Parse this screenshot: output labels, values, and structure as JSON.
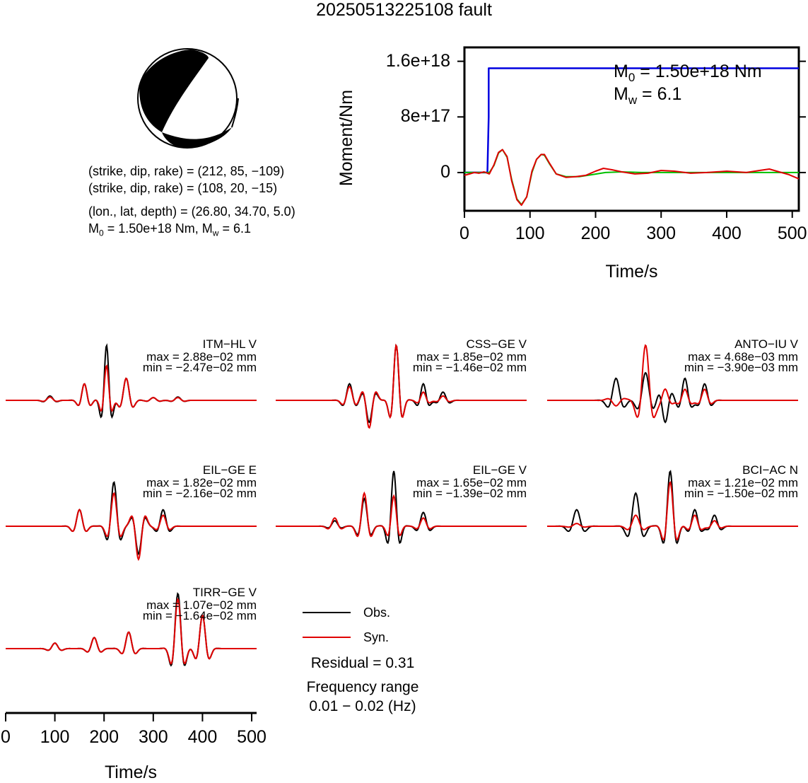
{
  "title": "20250513225108 fault",
  "beachball": {
    "line1": "(strike, dip, rake) = (212, 85, −109)",
    "line2": "(strike, dip, rake) = (108, 20, −15)",
    "line3": "(lon., lat, depth) = (26.80, 34.70, 5.0)",
    "m0_label": "M",
    "m0_sub": "0",
    "m0_rest": " = 1.50e+18 Nm, M",
    "mw_sub": "w",
    "mw_rest": " = 6.1"
  },
  "stf_annotation": {
    "m0_prefix": "M",
    "m0_sub": "0",
    "m0_value": " = 1.50e+18 Nm",
    "mw_prefix": "M",
    "mw_sub": "w",
    "mw_value": " = 6.1"
  },
  "legend": {
    "obs": "Obs.",
    "syn": "Syn.",
    "residual": "Residual = 0.31",
    "freq_label": "Frequency range",
    "freq_value": "0.01 − 0.02 (Hz)"
  },
  "colors": {
    "observed": "#000000",
    "synthetic": "#e00000",
    "moment": "#0000e0",
    "moment_rate_fit": "#00c000"
  },
  "chart_data": [
    {
      "type": "line",
      "title": "",
      "xlabel": "Time/s",
      "ylabel": "Moment/Nm",
      "xlim": [
        0,
        510
      ],
      "ylim": [
        -5.5e+17,
        1.8e+18
      ],
      "xticks": [
        "0",
        "100",
        "200",
        "300",
        "400",
        "500"
      ],
      "yticks": [
        "0",
        "8e+17",
        "1.6e+18"
      ],
      "ytick_values": [
        0,
        8e+17,
        1.6e+18
      ],
      "series": [
        {
          "key": "moment",
          "color": "#0000e0",
          "x": [
            0,
            35,
            37,
            37,
            510
          ],
          "y": [
            0,
            0,
            8e+17,
            1.5e+18,
            1.5e+18
          ]
        },
        {
          "key": "rate_fit",
          "color": "#00c000",
          "x": [
            0,
            30,
            38,
            45,
            52,
            58,
            65,
            72,
            80,
            87,
            95,
            103,
            110,
            117,
            122,
            130,
            140,
            155,
            175,
            195,
            215,
            240,
            270,
            320,
            400,
            510
          ],
          "y": [
            0,
            0,
            0,
            1e+17,
            2.8e+17,
            3.3e+17,
            2.2e+17,
            -1e+17,
            -3.8e+17,
            -4.6e+17,
            -3.5e+17,
            0,
            1.9e+17,
            2.6e+17,
            2.5e+17,
            1.2e+17,
            -2e+16,
            -6e+16,
            -6e+16,
            -3e+16,
            0,
            1e+16,
            0,
            0,
            0,
            0
          ]
        },
        {
          "key": "rate_syn",
          "color": "#e00000",
          "x": [
            0,
            8,
            15,
            22,
            30,
            38,
            45,
            52,
            58,
            65,
            72,
            80,
            87,
            95,
            103,
            110,
            117,
            122,
            130,
            140,
            155,
            170,
            185,
            200,
            212,
            225,
            240,
            260,
            280,
            300,
            320,
            345,
            370,
            400,
            430,
            450,
            465,
            480,
            495,
            510
          ],
          "y": [
            -4e+16,
            -2e+16,
            0,
            -1e+16,
            1e+16,
            -2e+16,
            1.1e+17,
            2.9e+17,
            3.3e+17,
            2.3e+17,
            -1.2e+17,
            -3.9e+17,
            -4.7e+17,
            -3.5e+17,
            2e+16,
            1.9e+17,
            2.6e+17,
            2.6e+17,
            1.3e+17,
            -2e+16,
            -7e+16,
            -6e+16,
            -4e+16,
            2e+16,
            6e+16,
            4e+16,
            1e+16,
            -2e+16,
            -1e+16,
            3e+16,
            2e+16,
            -1e+16,
            0,
            2e+16,
            0,
            3e+16,
            5e+16,
            1e+16,
            -3e+16,
            -9e+16
          ]
        }
      ]
    },
    {
      "type": "line",
      "xlabel": "Time/s",
      "xlim": [
        0,
        510
      ],
      "xticks": [
        "0",
        "100",
        "200",
        "300",
        "400",
        "500"
      ],
      "traces": [
        {
          "station": "ITM−HL V",
          "max": "max = 2.88e−02 mm",
          "min": "min = −2.47e−02 mm",
          "wavelets": [
            {
              "t": 90,
              "a": [
                0.08,
                0.06
              ],
              "s": 10
            },
            {
              "t": 160,
              "a": [
                0.3,
                0.3
              ],
              "s": 9
            },
            {
              "t": 205,
              "a": [
                1.0,
                0.63
              ],
              "s": 8
            },
            {
              "t": 245,
              "a": [
                0.4,
                0.4
              ],
              "s": 10
            },
            {
              "t": 300,
              "a": [
                0.05,
                0.05
              ],
              "s": 10
            },
            {
              "t": 350,
              "a": [
                0.06,
                0.05
              ],
              "s": 10
            }
          ]
        },
        {
          "station": "CSS−GE V",
          "max": "max = 1.85e−02 mm",
          "min": "min = −1.46e−02 mm",
          "wavelets": [
            {
              "t": 150,
              "a": [
                0.3,
                0.25
              ],
              "s": 10
            },
            {
              "t": 190,
              "a": [
                -0.4,
                -0.5
              ],
              "s": 10
            },
            {
              "t": 245,
              "a": [
                1.0,
                1.0
              ],
              "s": 9
            },
            {
              "t": 300,
              "a": [
                0.3,
                0.15
              ],
              "s": 9
            },
            {
              "t": 340,
              "a": [
                0.15,
                0.08
              ],
              "s": 10
            }
          ]
        },
        {
          "station": "ANTO−IU V",
          "max": "max = 4.68e−03 mm",
          "min": "min = −3.90e−03 mm",
          "wavelets": [
            {
              "t": 140,
              "a": [
                0.4,
                -0.1
              ],
              "s": 12
            },
            {
              "t": 200,
              "a": [
                0.5,
                1.0
              ],
              "s": 12
            },
            {
              "t": 240,
              "a": [
                -0.4,
                0.2
              ],
              "s": 10
            },
            {
              "t": 280,
              "a": [
                0.4,
                0.2
              ],
              "s": 10
            },
            {
              "t": 320,
              "a": [
                0.3,
                0.2
              ],
              "s": 10
            }
          ]
        },
        {
          "station": "EIL−GE E",
          "max": "max = 1.82e−02 mm",
          "min": "min = −2.16e−02 mm",
          "wavelets": [
            {
              "t": 150,
              "a": [
                0.3,
                0.3
              ],
              "s": 10
            },
            {
              "t": 220,
              "a": [
                0.8,
                0.6
              ],
              "s": 10
            },
            {
              "t": 270,
              "a": [
                -0.5,
                -0.6
              ],
              "s": 10
            },
            {
              "t": 320,
              "a": [
                0.3,
                0.2
              ],
              "s": 10
            }
          ]
        },
        {
          "station": "EIL−GE V",
          "max": "max = 1.65e−02 mm",
          "min": "min = −1.39e−02 mm",
          "wavelets": [
            {
              "t": 120,
              "a": [
                0.1,
                0.15
              ],
              "s": 10
            },
            {
              "t": 180,
              "a": [
                0.5,
                0.6
              ],
              "s": 10
            },
            {
              "t": 240,
              "a": [
                1.0,
                0.55
              ],
              "s": 9
            },
            {
              "t": 300,
              "a": [
                0.25,
                0.15
              ],
              "s": 10
            }
          ]
        },
        {
          "station": "BCI−AC N",
          "max": "max = 1.21e−02 mm",
          "min": "min = −1.50e−02 mm",
          "wavelets": [
            {
              "t": 60,
              "a": [
                0.3,
                0.05
              ],
              "s": 12
            },
            {
              "t": 180,
              "a": [
                0.6,
                0.2
              ],
              "s": 12
            },
            {
              "t": 250,
              "a": [
                1.0,
                0.8
              ],
              "s": 10
            },
            {
              "t": 300,
              "a": [
                0.3,
                0.2
              ],
              "s": 10
            },
            {
              "t": 340,
              "a": [
                0.2,
                0.1
              ],
              "s": 10
            }
          ]
        },
        {
          "station": "TIRR−GE V",
          "max": "max = 1.07e−02 mm",
          "min": "min = −1.64e−02 mm",
          "wavelets": [
            {
              "t": 100,
              "a": [
                0.1,
                0.1
              ],
              "s": 10
            },
            {
              "t": 180,
              "a": [
                0.2,
                0.2
              ],
              "s": 10
            },
            {
              "t": 250,
              "a": [
                0.3,
                0.3
              ],
              "s": 10
            },
            {
              "t": 350,
              "a": [
                1.0,
                0.9
              ],
              "s": 10
            },
            {
              "t": 400,
              "a": [
                0.6,
                0.6
              ],
              "s": 10
            }
          ]
        }
      ]
    }
  ]
}
